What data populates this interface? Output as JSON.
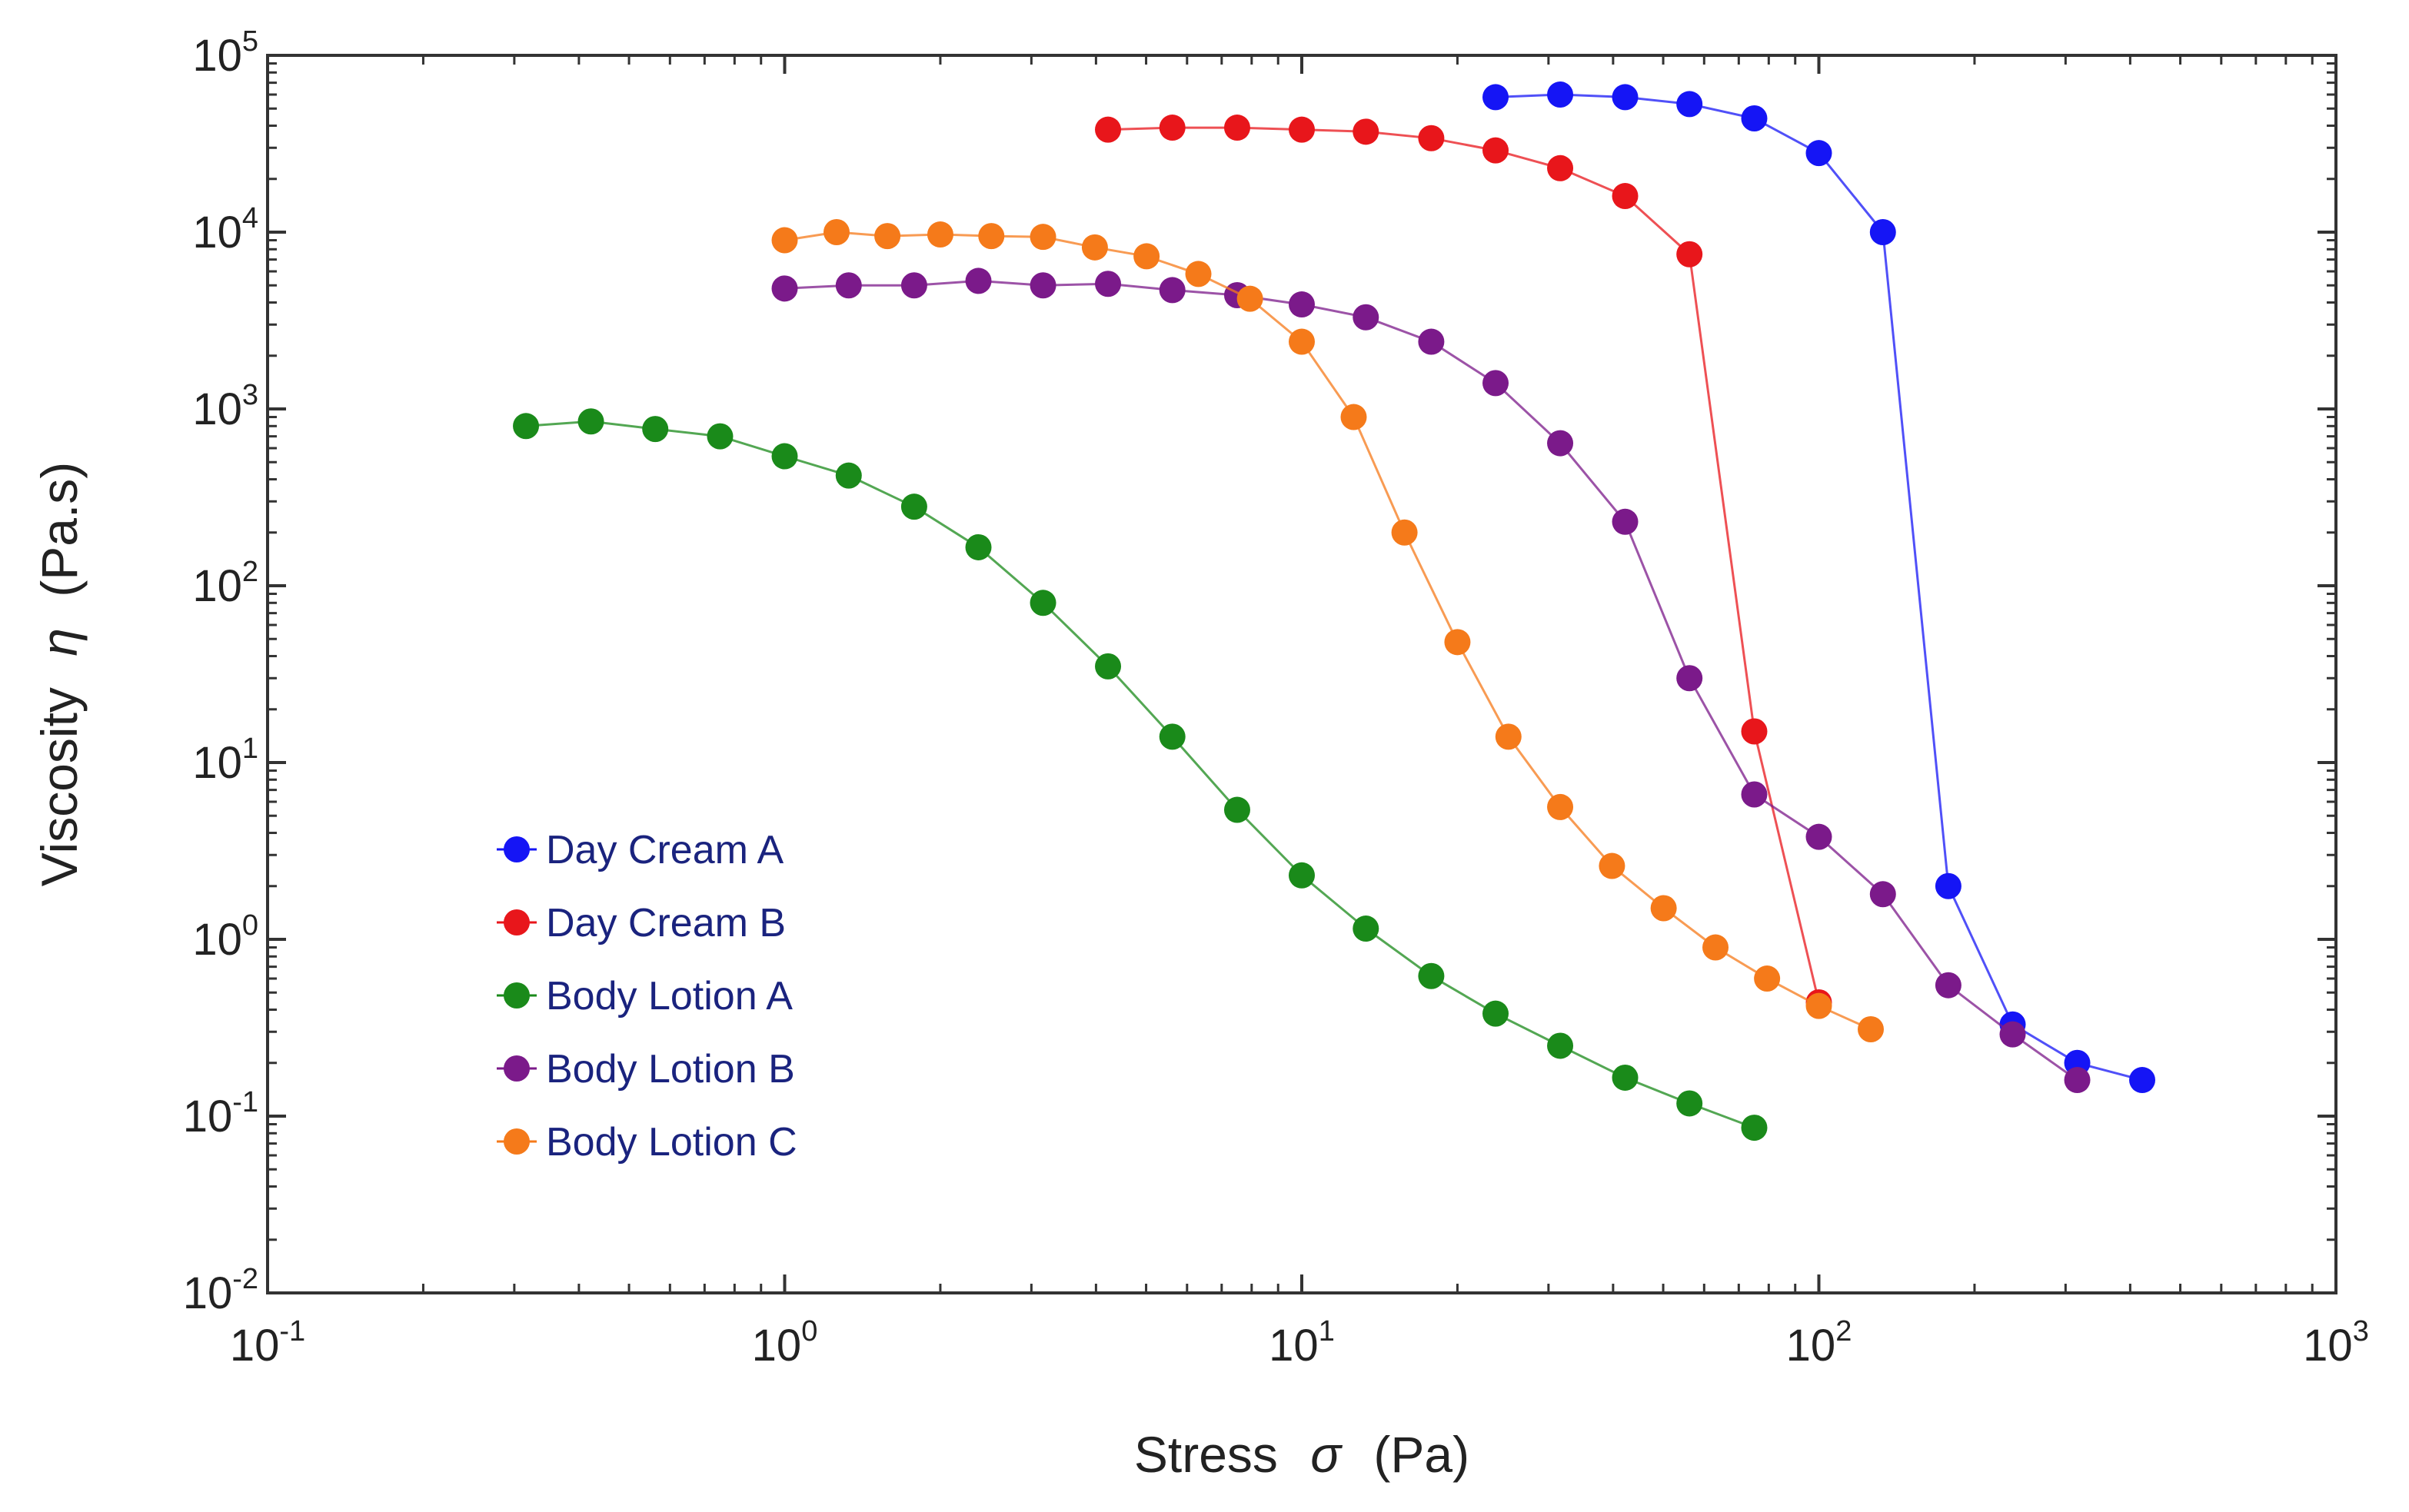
{
  "chart_data": {
    "type": "scatter",
    "xlabel": {
      "main": "Stress",
      "symbol": "σ",
      "unit": "(Pa)"
    },
    "ylabel": {
      "main": "Viscosity",
      "symbol": "η",
      "unit": "(Pa.s)"
    },
    "xscale": "log",
    "yscale": "log",
    "xlim": [
      0.1,
      1000
    ],
    "ylim": [
      0.01,
      100000
    ],
    "x_ticks": [
      {
        "base": "10",
        "exp": "-1",
        "value": 0.1
      },
      {
        "base": "10",
        "exp": "0",
        "value": 1
      },
      {
        "base": "10",
        "exp": "1",
        "value": 10
      },
      {
        "base": "10",
        "exp": "2",
        "value": 100
      },
      {
        "base": "10",
        "exp": "3",
        "value": 1000
      }
    ],
    "y_ticks": [
      {
        "base": "10",
        "exp": "-2",
        "value": 0.01
      },
      {
        "base": "10",
        "exp": "-1",
        "value": 0.1
      },
      {
        "base": "10",
        "exp": "0",
        "value": 1
      },
      {
        "base": "10",
        "exp": "1",
        "value": 10
      },
      {
        "base": "10",
        "exp": "2",
        "value": 100
      },
      {
        "base": "10",
        "exp": "3",
        "value": 1000
      },
      {
        "base": "10",
        "exp": "4",
        "value": 10000
      },
      {
        "base": "10",
        "exp": "5",
        "value": 100000
      }
    ],
    "legend_position": "lower-left",
    "grid": false,
    "series": [
      {
        "name": "Day Cream A",
        "color": "#1515f5",
        "x": [
          23.7,
          31.6,
          42.2,
          56.2,
          75.0,
          100,
          133,
          178,
          237,
          316,
          422
        ],
        "y": [
          58000,
          60000,
          58000,
          53000,
          44000,
          28000,
          10000,
          2.0,
          0.33,
          0.2,
          0.16
        ]
      },
      {
        "name": "Day Cream B",
        "color": "#e8161b",
        "x": [
          4.22,
          5.62,
          7.5,
          10.0,
          13.3,
          17.8,
          23.7,
          31.6,
          42.2,
          56.2,
          75.0,
          100
        ],
        "y": [
          38000,
          39000,
          39000,
          38000,
          37000,
          34000,
          29000,
          23000,
          16000,
          7500,
          15,
          0.44
        ]
      },
      {
        "name": "Body Lotion A",
        "color": "#1a8a1a",
        "x": [
          0.316,
          0.422,
          0.562,
          0.75,
          1.0,
          1.33,
          1.78,
          2.37,
          3.16,
          4.22,
          5.62,
          7.5,
          10.0,
          13.3,
          17.8,
          23.7,
          31.6,
          42.2,
          56.2,
          75.0
        ],
        "y": [
          800,
          850,
          770,
          700,
          540,
          420,
          280,
          165,
          80,
          35,
          14,
          5.4,
          2.3,
          1.15,
          0.62,
          0.38,
          0.25,
          0.165,
          0.118,
          0.086
        ]
      },
      {
        "name": "Body Lotion B",
        "color": "#7b1a8a",
        "x": [
          1.0,
          1.33,
          1.78,
          2.37,
          3.16,
          4.22,
          5.62,
          7.5,
          10.0,
          13.3,
          17.8,
          23.7,
          31.6,
          42.2,
          56.2,
          75.0,
          100,
          133,
          178,
          237,
          316
        ],
        "y": [
          4800,
          5000,
          5000,
          5300,
          5000,
          5100,
          4700,
          4400,
          3900,
          3300,
          2400,
          1400,
          640,
          230,
          30,
          6.6,
          3.8,
          1.8,
          0.55,
          0.29,
          0.16
        ]
      },
      {
        "name": "Body Lotion C",
        "color": "#f57a1a",
        "x": [
          1.0,
          1.26,
          1.58,
          2.0,
          2.51,
          3.16,
          3.98,
          5.01,
          6.31,
          7.94,
          10.0,
          12.6,
          15.8,
          20.0,
          25.1,
          31.6,
          39.8,
          50.1,
          63.1,
          79.4,
          100,
          126
        ],
        "y": [
          9000,
          10000,
          9500,
          9700,
          9500,
          9400,
          8200,
          7300,
          5800,
          4200,
          2400,
          900,
          200,
          48,
          14,
          5.6,
          2.6,
          1.5,
          0.9,
          0.6,
          0.42,
          0.31
        ]
      }
    ]
  }
}
